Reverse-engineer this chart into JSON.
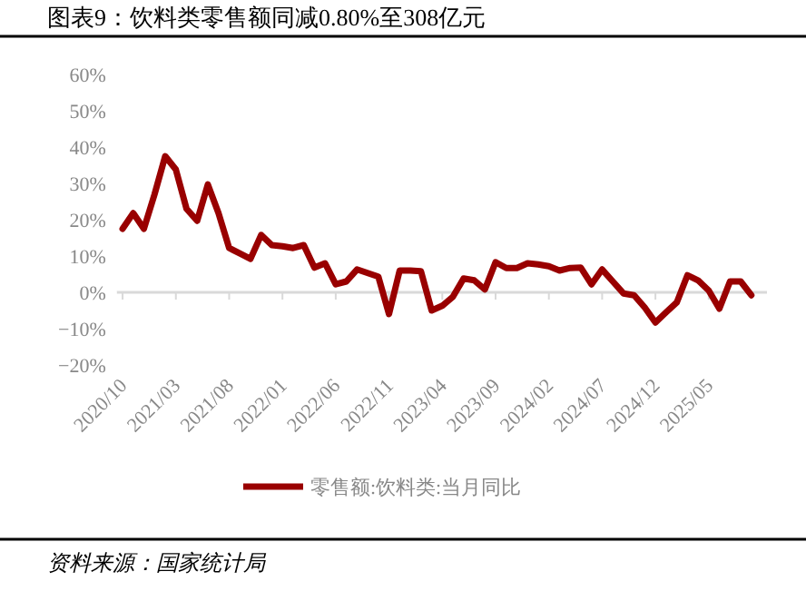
{
  "chart_data": {
    "type": "line",
    "title": "图表9：饮料类零售额同减0.80%至308亿元",
    "x": [
      "2020-10",
      "2020-11",
      "2020-12",
      "2021-01",
      "2021-02",
      "2021-03",
      "2021-04",
      "2021-05",
      "2021-06",
      "2021-07",
      "2021-08",
      "2021-09",
      "2021-10",
      "2021-11",
      "2021-12",
      "2022-01",
      "2022-02",
      "2022-03",
      "2022-04",
      "2022-05",
      "2022-06",
      "2022-07",
      "2022-08",
      "2022-09",
      "2022-10",
      "2022-11",
      "2022-12",
      "2023-01",
      "2023-02",
      "2023-03",
      "2023-04",
      "2023-05",
      "2023-06",
      "2023-07",
      "2023-08",
      "2023-09",
      "2023-10",
      "2023-11",
      "2023-12",
      "2024-01",
      "2024-02",
      "2024-03",
      "2024-04",
      "2024-05",
      "2024-06",
      "2024-07",
      "2024-08",
      "2024-09",
      "2024-10",
      "2024-11",
      "2024-12",
      "2025-01",
      "2025-02",
      "2025-03",
      "2025-04",
      "2025-05",
      "2025-06",
      "2025-07",
      "2025-08",
      "2025-09"
    ],
    "series": [
      {
        "name": "零售额:饮料类:当月同比",
        "color": "#990000",
        "values": [
          17.5,
          21.8,
          17.5,
          27,
          37.5,
          33.8,
          23,
          19.7,
          29.7,
          21.8,
          12.2,
          10.7,
          9.2,
          15.8,
          13,
          12.7,
          12.2,
          13,
          6.8,
          8,
          2.2,
          3,
          6.3,
          5.3,
          4.3,
          -6,
          6,
          6,
          5.8,
          -5,
          -3.7,
          -1.2,
          3.8,
          3.3,
          0.8,
          8.3,
          6.7,
          6.7,
          8,
          7.7,
          7.2,
          6,
          6.7,
          6.8,
          2.2,
          6.3,
          3,
          -0.3,
          -0.8,
          -4.2,
          -8.3,
          -5.5,
          -2.8,
          4.7,
          3.3,
          0.5,
          -4.5,
          3,
          3,
          -0.8
        ]
      }
    ],
    "xlim": [
      "2020-09-15",
      "2025-10-15"
    ],
    "xticks": [
      {
        "value": "2020-10",
        "label": "2020/10"
      },
      {
        "value": "2021-03",
        "label": "2021/03"
      },
      {
        "value": "2021-08",
        "label": "2021/08"
      },
      {
        "value": "2022-01",
        "label": "2022/01"
      },
      {
        "value": "2022-06",
        "label": "2022/06"
      },
      {
        "value": "2022-11",
        "label": "2022/11"
      },
      {
        "value": "2023-04",
        "label": "2023/04"
      },
      {
        "value": "2023-09",
        "label": "2023/09"
      },
      {
        "value": "2024-02",
        "label": "2024/02"
      },
      {
        "value": "2024-07",
        "label": "2024/07"
      },
      {
        "value": "2024-12",
        "label": "2024/12"
      },
      {
        "value": "2025-05",
        "label": "2025/05"
      }
    ],
    "ylim": [
      -20,
      60
    ],
    "yticks": [
      {
        "value": 60,
        "label": "60%"
      },
      {
        "value": 50,
        "label": "50%"
      },
      {
        "value": 40,
        "label": "40%"
      },
      {
        "value": 30,
        "label": "30%"
      },
      {
        "value": 20,
        "label": "20%"
      },
      {
        "value": 10,
        "label": "10%"
      },
      {
        "value": 0,
        "label": "0%"
      },
      {
        "value": -10,
        "label": "−10%"
      },
      {
        "value": -20,
        "label": "−20%"
      }
    ],
    "legend": "bottom",
    "annotations": [
      "资料来源：国家统计局"
    ]
  }
}
